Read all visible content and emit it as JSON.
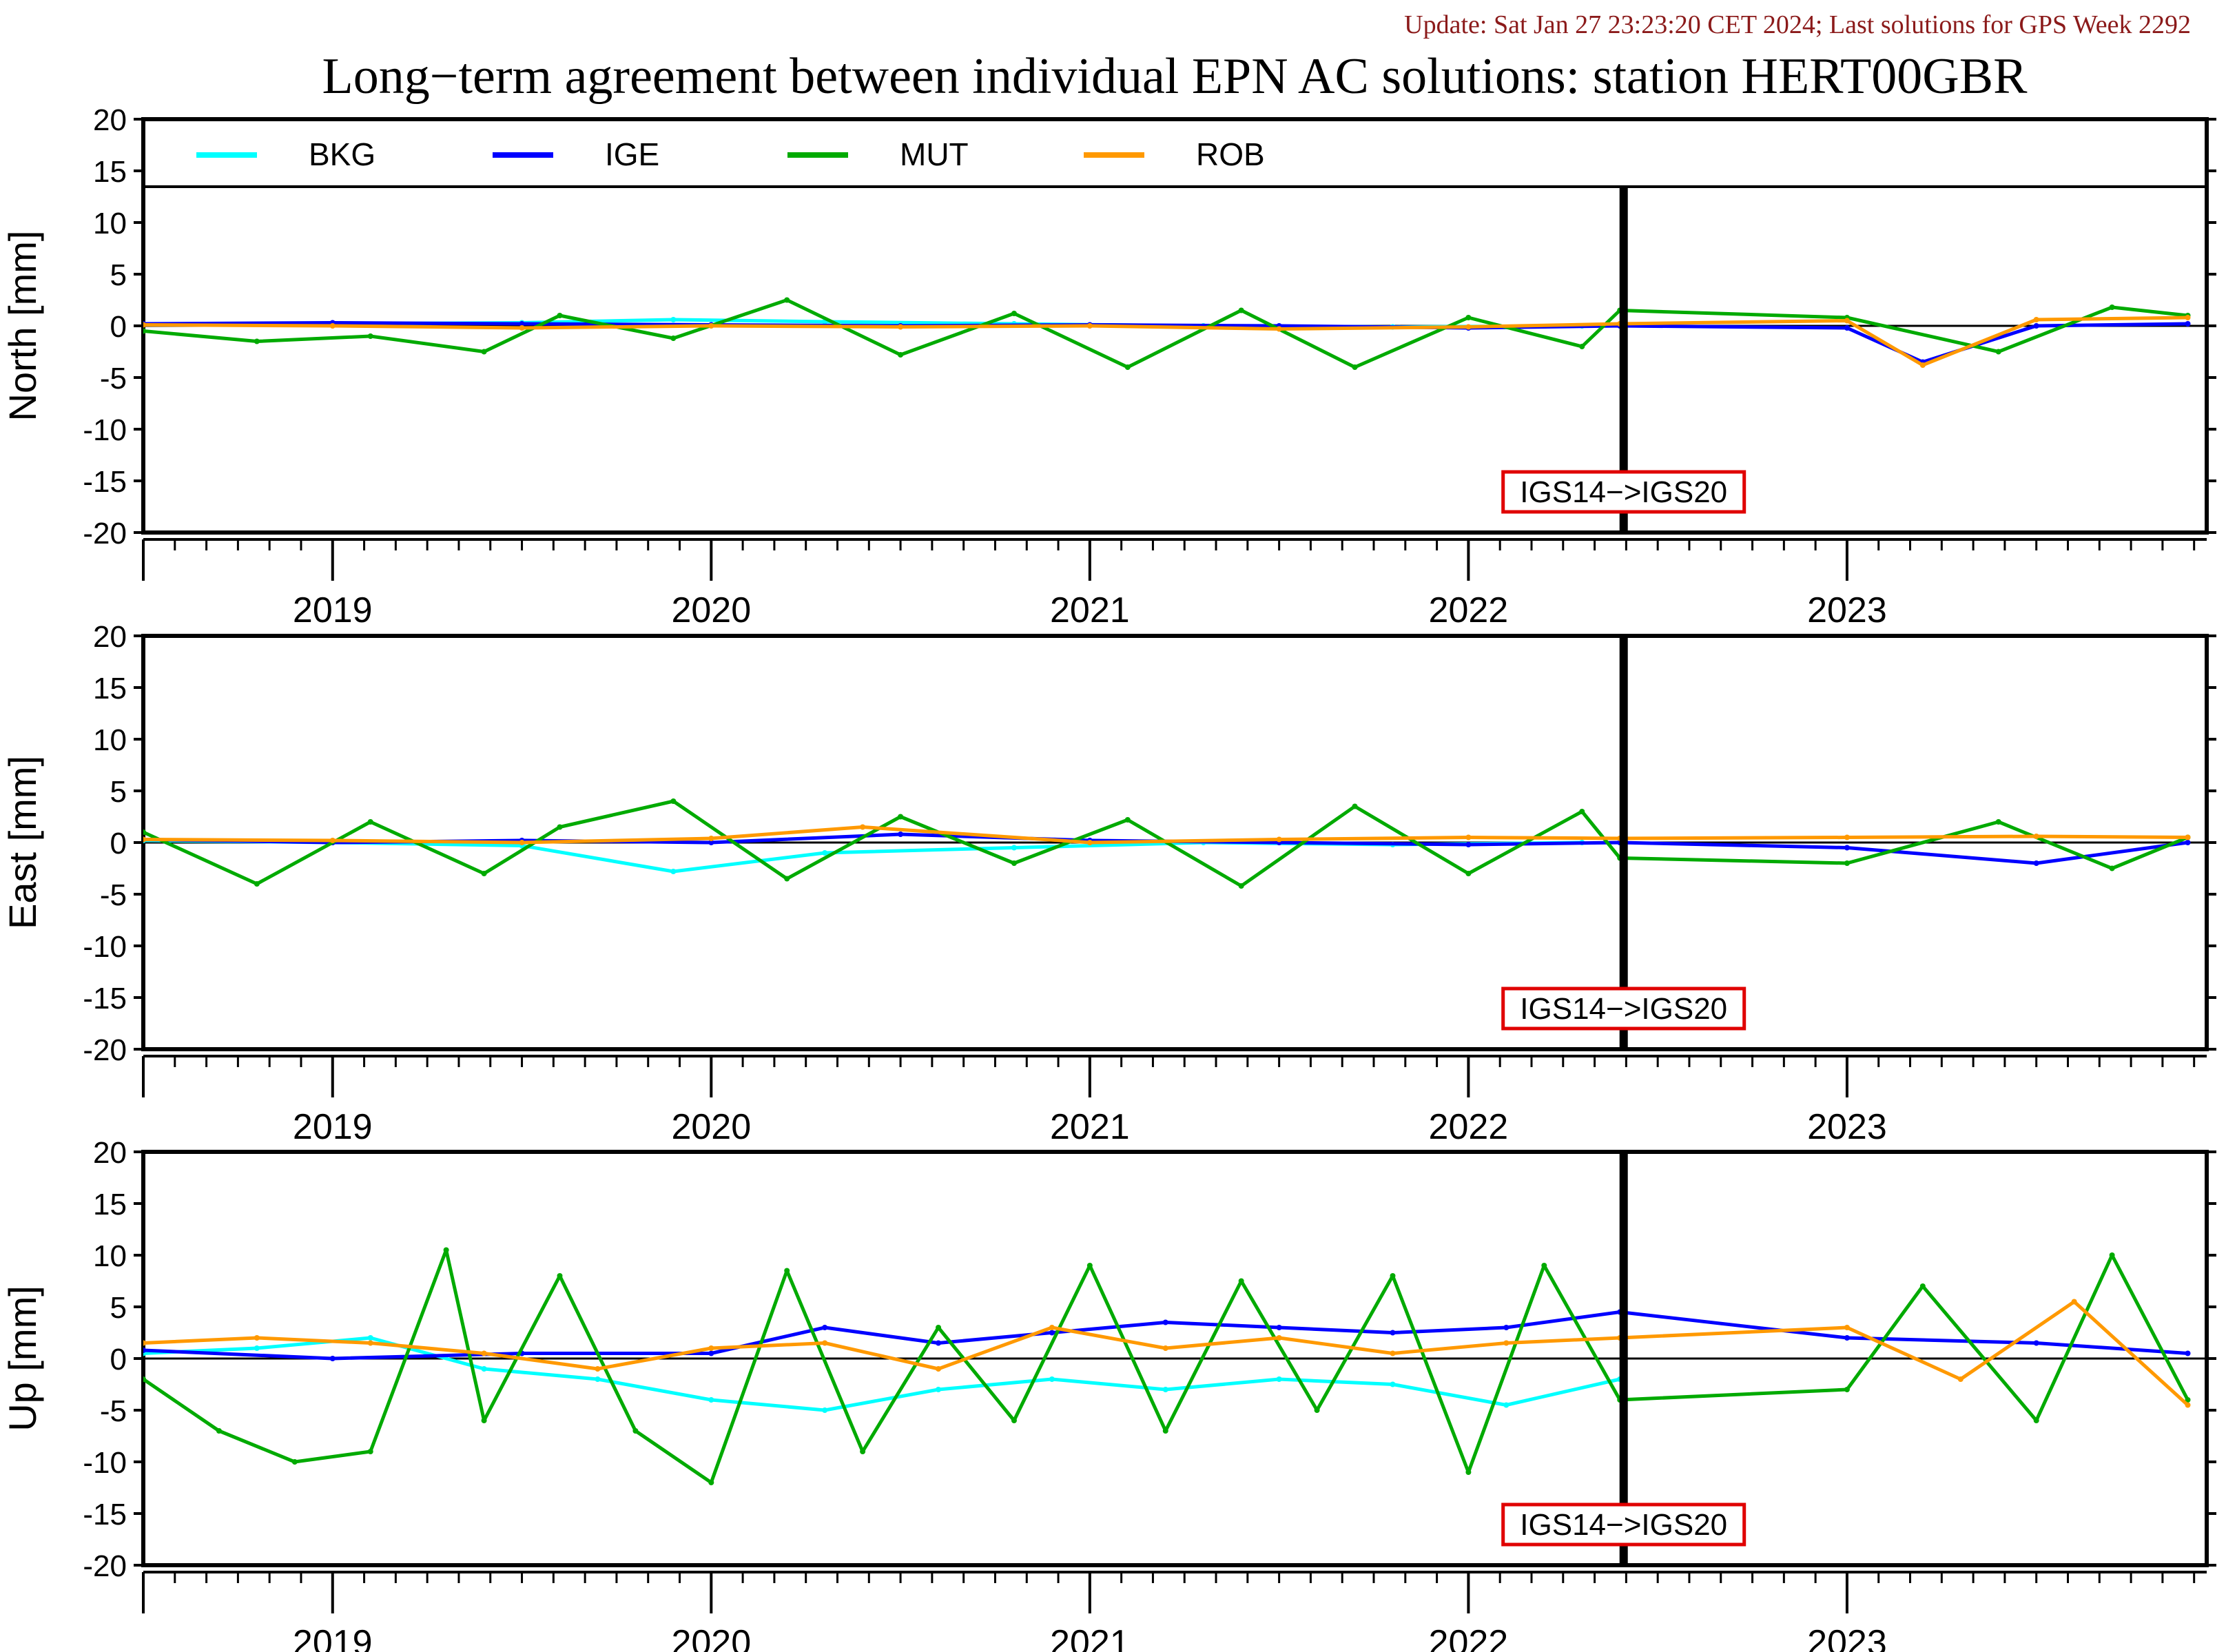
{
  "update_text": "Update: Sat Jan 27 23:23:20 CET 2024; Last solutions for GPS Week 2292",
  "title": "Long−term agreement between individual EPN AC solutions: station HERT00GBR",
  "colors": {
    "update": "#8b1a1a",
    "BKG": "#00ffff",
    "IGE": "#0000ff",
    "MUT": "#00aa00",
    "ROB": "#ff9900",
    "annotation_border": "#e00000"
  },
  "chart_data": {
    "type": "line",
    "x_range": [
      2018.5,
      2023.95
    ],
    "x_tick_labels": [
      "2019",
      "2020",
      "2021",
      "2022",
      "2023"
    ],
    "ylim": [
      -20,
      20
    ],
    "y_ticks": [
      20,
      15,
      10,
      5,
      0,
      -5,
      -10,
      -15,
      -20
    ],
    "legend": [
      "BKG",
      "IGE",
      "MUT",
      "ROB"
    ],
    "legend_placement": "top",
    "reference_line": {
      "x": 2022.41,
      "label": "IGS14−>IGS20"
    },
    "gap": [
      2022.41,
      2023.0
    ],
    "panels": [
      {
        "ylabel": "North [mm]",
        "series": [
          {
            "name": "BKG",
            "x": [
              2018.5,
              2019.0,
              2019.5,
              2019.9,
              2020.3,
              2020.8,
              2021.3,
              2021.8,
              2022.3
            ],
            "y": [
              0.1,
              0.2,
              0.3,
              0.6,
              0.4,
              0.2,
              0.0,
              -0.1,
              0.0
            ]
          },
          {
            "name": "IGE",
            "x": [
              2018.5,
              2019.0,
              2019.5,
              2020.0,
              2020.5,
              2021.0,
              2021.5,
              2022.0,
              2022.4,
              2023.0,
              2023.2,
              2023.5,
              2023.9
            ],
            "y": [
              0.2,
              0.3,
              0.2,
              0.1,
              0.0,
              0.1,
              0.0,
              -0.2,
              0.0,
              -0.2,
              -3.5,
              0.0,
              0.2
            ]
          },
          {
            "name": "MUT",
            "x": [
              2018.5,
              2018.8,
              2019.1,
              2019.4,
              2019.6,
              2019.9,
              2020.2,
              2020.5,
              2020.8,
              2021.1,
              2021.4,
              2021.7,
              2022.0,
              2022.3,
              2022.4,
              2023.0,
              2023.4,
              2023.7,
              2023.9
            ],
            "y": [
              -0.5,
              -1.5,
              -1.0,
              -2.5,
              1.0,
              -1.2,
              2.5,
              -2.8,
              1.2,
              -4.0,
              1.5,
              -4.0,
              0.8,
              -2.0,
              1.5,
              0.8,
              -2.5,
              1.8,
              1.0
            ]
          },
          {
            "name": "ROB",
            "x": [
              2018.5,
              2019.0,
              2019.5,
              2020.0,
              2020.5,
              2021.0,
              2021.5,
              2022.0,
              2022.4,
              2023.0,
              2023.2,
              2023.5,
              2023.9
            ],
            "y": [
              0.1,
              0.0,
              -0.2,
              0.0,
              -0.1,
              0.0,
              -0.3,
              -0.1,
              0.2,
              0.5,
              -3.8,
              0.6,
              0.8
            ]
          }
        ]
      },
      {
        "ylabel": "East [mm]",
        "series": [
          {
            "name": "BKG",
            "x": [
              2018.5,
              2019.0,
              2019.5,
              2019.9,
              2020.3,
              2020.8,
              2021.3,
              2021.8,
              2022.3
            ],
            "y": [
              0.2,
              0.0,
              -0.3,
              -2.8,
              -1.0,
              -0.5,
              0.0,
              -0.2,
              0.0
            ]
          },
          {
            "name": "IGE",
            "x": [
              2018.5,
              2019.0,
              2019.5,
              2020.0,
              2020.5,
              2021.0,
              2021.5,
              2022.0,
              2022.4,
              2023.0,
              2023.5,
              2023.9
            ],
            "y": [
              0.3,
              0.0,
              0.2,
              0.0,
              0.8,
              0.2,
              0.0,
              -0.2,
              0.0,
              -0.5,
              -2.0,
              0.0
            ]
          },
          {
            "name": "MUT",
            "x": [
              2018.5,
              2018.8,
              2019.1,
              2019.4,
              2019.6,
              2019.9,
              2020.2,
              2020.5,
              2020.8,
              2021.1,
              2021.4,
              2021.7,
              2022.0,
              2022.3,
              2022.4,
              2023.0,
              2023.4,
              2023.7,
              2023.9
            ],
            "y": [
              1.0,
              -4.0,
              2.0,
              -3.0,
              1.5,
              4.0,
              -3.5,
              2.5,
              -2.0,
              2.2,
              -4.2,
              3.5,
              -3.0,
              3.0,
              -1.5,
              -2.0,
              2.0,
              -2.5,
              0.5
            ]
          },
          {
            "name": "ROB",
            "x": [
              2018.5,
              2019.0,
              2019.5,
              2020.0,
              2020.4,
              2021.0,
              2021.5,
              2022.0,
              2022.4,
              2023.0,
              2023.5,
              2023.9
            ],
            "y": [
              0.3,
              0.2,
              0.0,
              0.4,
              1.5,
              0.0,
              0.3,
              0.5,
              0.4,
              0.5,
              0.6,
              0.5
            ]
          }
        ]
      },
      {
        "ylabel": "Up [mm]",
        "series": [
          {
            "name": "BKG",
            "x": [
              2018.5,
              2018.8,
              2019.1,
              2019.4,
              2019.7,
              2020.0,
              2020.3,
              2020.6,
              2020.9,
              2021.2,
              2021.5,
              2021.8,
              2022.1,
              2022.4
            ],
            "y": [
              0.5,
              1.0,
              2.0,
              -1.0,
              -2.0,
              -4.0,
              -5.0,
              -3.0,
              -2.0,
              -3.0,
              -2.0,
              -2.5,
              -4.5,
              -2.0
            ]
          },
          {
            "name": "IGE",
            "x": [
              2018.5,
              2019.0,
              2019.5,
              2020.0,
              2020.3,
              2020.6,
              2020.9,
              2021.2,
              2021.5,
              2021.8,
              2022.1,
              2022.4,
              2023.0,
              2023.5,
              2023.9
            ],
            "y": [
              0.8,
              0.0,
              0.5,
              0.5,
              3.0,
              1.5,
              2.5,
              3.5,
              3.0,
              2.5,
              3.0,
              4.5,
              2.0,
              1.5,
              0.5
            ]
          },
          {
            "name": "MUT",
            "x": [
              2018.5,
              2018.7,
              2018.9,
              2019.1,
              2019.3,
              2019.4,
              2019.6,
              2019.8,
              2020.0,
              2020.2,
              2020.4,
              2020.6,
              2020.8,
              2021.0,
              2021.2,
              2021.4,
              2021.6,
              2021.8,
              2022.0,
              2022.2,
              2022.4,
              2023.0,
              2023.2,
              2023.5,
              2023.7,
              2023.9
            ],
            "y": [
              -2.0,
              -7.0,
              -10.0,
              -9.0,
              10.5,
              -6.0,
              8.0,
              -7.0,
              -12.0,
              8.5,
              -9.0,
              3.0,
              -6.0,
              9.0,
              -7.0,
              7.5,
              -5.0,
              8.0,
              -11.0,
              9.0,
              -4.0,
              -3.0,
              7.0,
              -6.0,
              10.0,
              -4.0
            ]
          },
          {
            "name": "ROB",
            "x": [
              2018.5,
              2018.8,
              2019.1,
              2019.4,
              2019.7,
              2020.0,
              2020.3,
              2020.6,
              2020.9,
              2021.2,
              2021.5,
              2021.8,
              2022.1,
              2022.4,
              2023.0,
              2023.3,
              2023.6,
              2023.9
            ],
            "y": [
              1.5,
              2.0,
              1.5,
              0.5,
              -1.0,
              1.0,
              1.5,
              -1.0,
              3.0,
              1.0,
              2.0,
              0.5,
              1.5,
              2.0,
              3.0,
              -2.0,
              5.5,
              -4.5
            ]
          }
        ]
      }
    ]
  }
}
